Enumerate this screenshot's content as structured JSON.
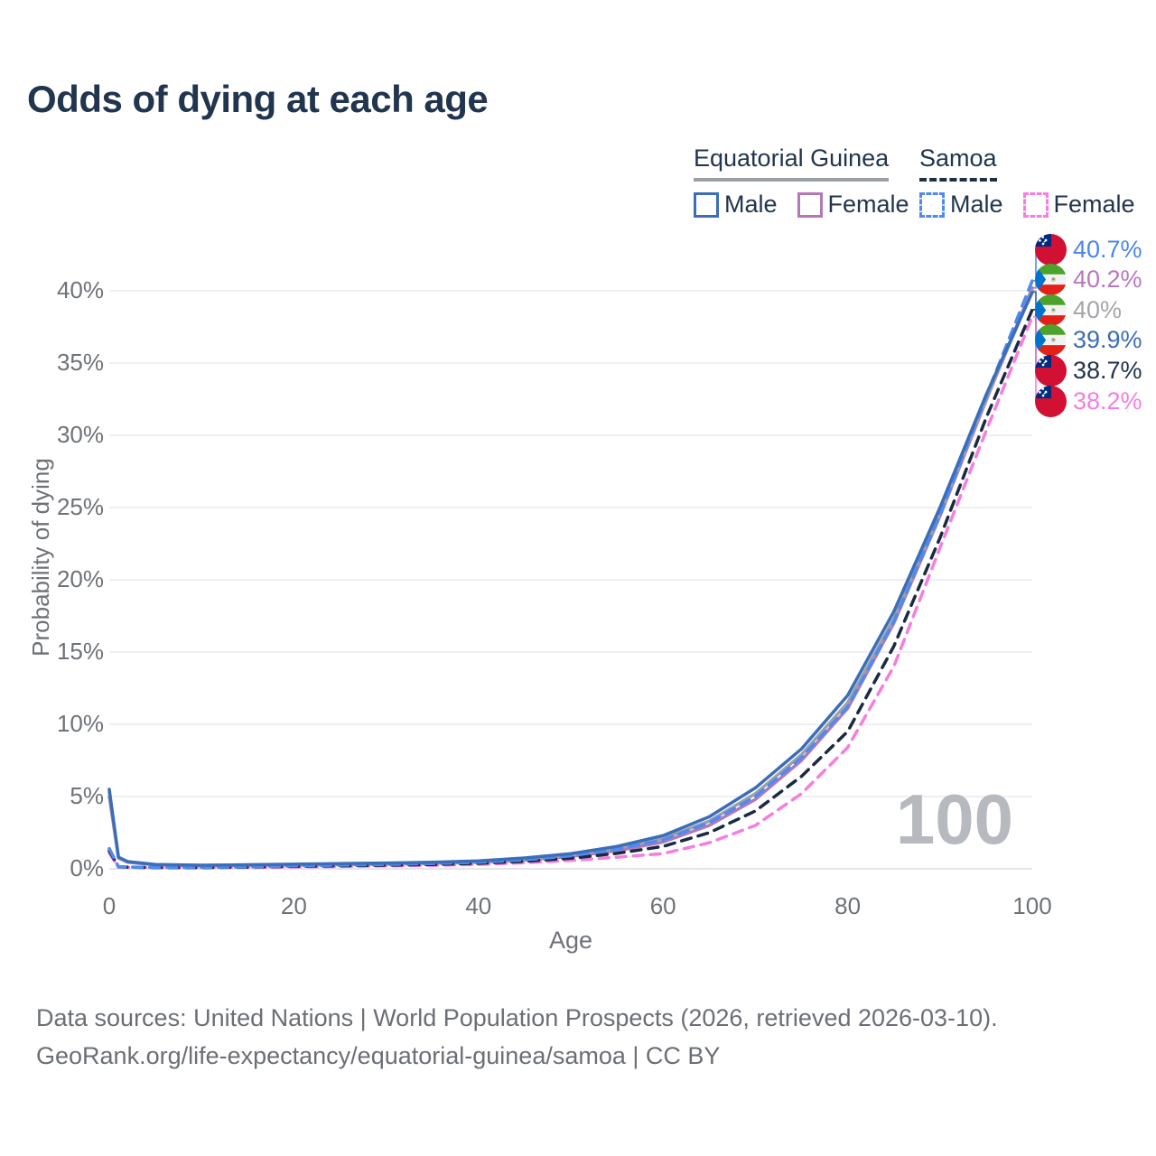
{
  "title": "Odds of dying at each age",
  "legend": {
    "groups": [
      {
        "label": "Equatorial Guinea",
        "line_style": "solid",
        "underline_color": "#9aa0a6",
        "items": [
          {
            "label": "Male",
            "color": "#3b6db8",
            "dashed": false
          },
          {
            "label": "Female",
            "color": "#b279b8",
            "dashed": false
          }
        ]
      },
      {
        "label": "Samoa",
        "line_style": "dashed",
        "underline_color": "#1d3044",
        "items": [
          {
            "label": "Male",
            "color": "#4e8af0",
            "dashed": true
          },
          {
            "label": "Female",
            "color": "#f57ee0",
            "dashed": true
          }
        ]
      }
    ]
  },
  "chart_data": {
    "type": "line",
    "title": "Odds of dying at each age",
    "xlabel": "Age",
    "ylabel": "Probability of dying",
    "xlim": [
      0,
      100
    ],
    "ylim_pct": [
      0,
      42
    ],
    "x_ticks": [
      0,
      20,
      40,
      60,
      80,
      100
    ],
    "y_ticks_pct": [
      0,
      5,
      10,
      15,
      20,
      25,
      30,
      35,
      40
    ],
    "grid": true,
    "x": [
      0,
      1,
      2,
      5,
      10,
      15,
      20,
      25,
      30,
      35,
      40,
      45,
      50,
      55,
      60,
      65,
      70,
      75,
      80,
      85,
      90,
      95,
      100
    ],
    "series": [
      {
        "name": "Equatorial Guinea Female",
        "country": "Equatorial Guinea",
        "sex": "Female",
        "color": "#b279b8",
        "dashed": false,
        "end_label": "40.2%",
        "values_pct": [
          5.0,
          0.75,
          0.45,
          0.26,
          0.21,
          0.23,
          0.27,
          0.3,
          0.33,
          0.38,
          0.45,
          0.6,
          0.85,
          1.25,
          1.85,
          3.0,
          4.8,
          7.5,
          11.1,
          17.0,
          24.4,
          32.4,
          40.2
        ]
      },
      {
        "name": "Equatorial Guinea Both sexes",
        "country": "Equatorial Guinea",
        "sex": "Both sexes",
        "color": "#9ba1a8",
        "dashed": false,
        "end_label": "40%",
        "values_pct": [
          5.3,
          0.78,
          0.48,
          0.28,
          0.23,
          0.26,
          0.3,
          0.33,
          0.37,
          0.42,
          0.5,
          0.68,
          0.95,
          1.4,
          2.1,
          3.3,
          5.2,
          7.9,
          11.5,
          17.3,
          24.6,
          32.5,
          40.0
        ]
      },
      {
        "name": "Samoa Female",
        "country": "Samoa",
        "sex": "Female",
        "color": "#f57ee0",
        "dashed": true,
        "end_label": "38.2%",
        "values_pct": [
          1.1,
          0.12,
          0.1,
          0.08,
          0.08,
          0.1,
          0.13,
          0.16,
          0.2,
          0.24,
          0.3,
          0.42,
          0.58,
          0.8,
          1.05,
          1.8,
          3.0,
          5.2,
          8.4,
          14.0,
          22.2,
          30.3,
          38.2
        ]
      },
      {
        "name": "Samoa Both sexes",
        "country": "Samoa",
        "sex": "Both sexes",
        "color": "#1b2a40",
        "dashed": true,
        "end_label": "38.7%",
        "values_pct": [
          1.25,
          0.14,
          0.11,
          0.09,
          0.09,
          0.12,
          0.17,
          0.21,
          0.25,
          0.3,
          0.38,
          0.52,
          0.73,
          1.07,
          1.55,
          2.5,
          4.0,
          6.4,
          9.5,
          15.4,
          22.9,
          31.2,
          38.7
        ]
      },
      {
        "name": "Samoa Male",
        "country": "Samoa",
        "sex": "Male",
        "color": "#4e8af0",
        "dashed": true,
        "end_label": "40.7%",
        "values_pct": [
          1.4,
          0.15,
          0.12,
          0.1,
          0.1,
          0.14,
          0.2,
          0.25,
          0.3,
          0.36,
          0.45,
          0.62,
          0.9,
          1.35,
          2.0,
          3.2,
          5.0,
          7.7,
          11.2,
          17.1,
          24.5,
          32.7,
          40.7
        ]
      },
      {
        "name": "Equatorial Guinea Male",
        "country": "Equatorial Guinea",
        "sex": "Male",
        "color": "#3b6db8",
        "dashed": false,
        "end_label": "39.9%",
        "values_pct": [
          5.5,
          0.8,
          0.5,
          0.3,
          0.25,
          0.28,
          0.32,
          0.36,
          0.4,
          0.45,
          0.55,
          0.75,
          1.05,
          1.55,
          2.3,
          3.6,
          5.6,
          8.3,
          12.0,
          17.8,
          25.0,
          32.8,
          39.9
        ]
      }
    ],
    "legend_position": "top-right",
    "watermark": "100"
  },
  "endpoint_labels": [
    {
      "value": "40.7%",
      "series": "Samoa Male",
      "flag": "samoa",
      "color": "#4a86ec"
    },
    {
      "value": "40.2%",
      "series": "Equatorial Guinea Female",
      "flag": "equatorial-guinea",
      "color": "#b878bd"
    },
    {
      "value": "40%",
      "series": "Equatorial Guinea Both sexes",
      "flag": "equatorial-guinea",
      "color": "#a6a6aa"
    },
    {
      "value": "39.9%",
      "series": "Equatorial Guinea Male",
      "flag": "equatorial-guinea",
      "color": "#3b6db8"
    },
    {
      "value": "38.7%",
      "series": "Samoa Both sexes",
      "flag": "samoa",
      "color": "#22334a"
    },
    {
      "value": "38.2%",
      "series": "Samoa Female",
      "flag": "samoa",
      "color": "#f57ee0"
    }
  ],
  "watermark": "100",
  "axes": {
    "x_title": "Age",
    "y_title": "Probability of dying",
    "y_tick_suffix": "%"
  },
  "footer": {
    "line1": "Data sources: United Nations | World Population Prospects (2026, retrieved 2026-03-10).",
    "line2": "GeoRank.org/life-expectancy/equatorial-guinea/samoa | CC BY"
  },
  "colors": {
    "title_text": "#22354e",
    "axis_text": "#6e7277",
    "gridline": "#ececf0",
    "baseline": "#dcdce0",
    "watermark": "#b6b9be",
    "footer_text": "#6b6f75"
  }
}
